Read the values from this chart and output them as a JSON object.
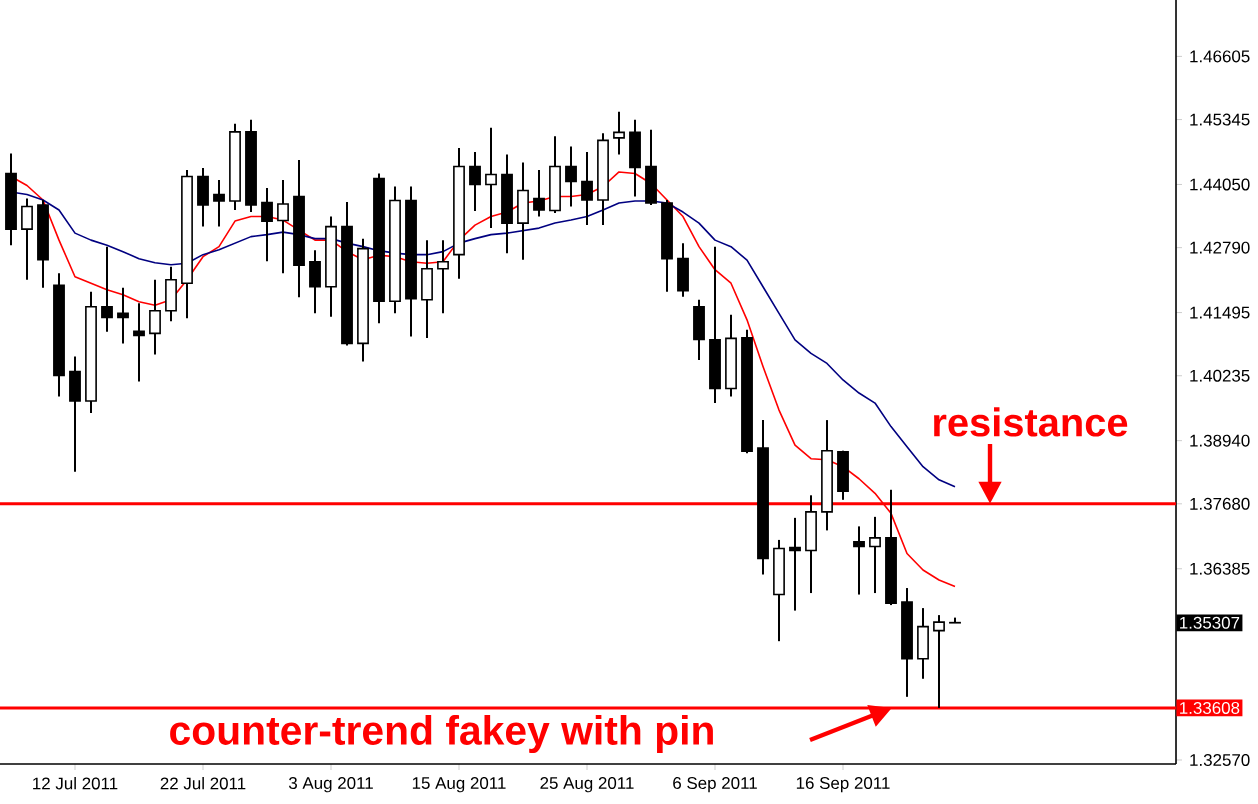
{
  "chart_data": {
    "type": "candlestick",
    "categories": [
      null,
      null,
      null,
      null,
      "12 Jul 2011",
      null,
      null,
      null,
      null,
      null,
      null,
      null,
      "22 Jul 2011",
      null,
      null,
      null,
      null,
      null,
      null,
      null,
      "3 Aug 2011",
      null,
      null,
      null,
      null,
      null,
      null,
      null,
      "15 Aug 2011",
      null,
      null,
      null,
      null,
      null,
      null,
      null,
      "25 Aug 2011",
      null,
      null,
      null,
      null,
      null,
      null,
      null,
      "6 Sep 2011",
      null,
      null,
      null,
      null,
      null,
      null,
      null,
      "16 Sep 2011",
      null,
      null,
      null,
      null,
      null,
      null,
      null
    ],
    "ohlc": [
      [
        1.4427,
        1.4467,
        1.4284,
        1.4316
      ],
      [
        1.4316,
        1.4377,
        1.4215,
        1.4361
      ],
      [
        1.4364,
        1.4374,
        1.4199,
        1.4255
      ],
      [
        1.4204,
        1.4228,
        1.3982,
        1.4024
      ],
      [
        1.4032,
        1.4062,
        1.3832,
        1.3973
      ],
      [
        1.3973,
        1.4191,
        1.3949,
        1.4161
      ],
      [
        1.4161,
        1.4281,
        1.4111,
        1.414
      ],
      [
        1.4148,
        1.4199,
        1.4088,
        1.414
      ],
      [
        1.4112,
        1.4168,
        1.4012,
        1.4104
      ],
      [
        1.4108,
        1.4215,
        1.4066,
        1.4153
      ],
      [
        1.4153,
        1.4241,
        1.4132,
        1.4215
      ],
      [
        1.4208,
        1.4434,
        1.4138,
        1.4421
      ],
      [
        1.4421,
        1.4438,
        1.4321,
        1.4364
      ],
      [
        1.4385,
        1.4414,
        1.4321,
        1.4372
      ],
      [
        1.4372,
        1.4526,
        1.4354,
        1.451
      ],
      [
        1.451,
        1.4534,
        1.435,
        1.4364
      ],
      [
        1.4369,
        1.4398,
        1.4252,
        1.4332
      ],
      [
        1.4333,
        1.4414,
        1.4228,
        1.4366
      ],
      [
        1.4381,
        1.4454,
        1.418,
        1.4244
      ],
      [
        1.4251,
        1.4274,
        1.4148,
        1.4201
      ],
      [
        1.4201,
        1.4341,
        1.4141,
        1.4321
      ],
      [
        1.4321,
        1.437,
        1.4084,
        1.4088
      ],
      [
        1.4088,
        1.4297,
        1.4052,
        1.4277
      ],
      [
        1.4417,
        1.4427,
        1.4128,
        1.4172
      ],
      [
        1.4172,
        1.4401,
        1.4148,
        1.4373
      ],
      [
        1.4373,
        1.4401,
        1.4102,
        1.4177
      ],
      [
        1.4175,
        1.4294,
        1.4099,
        1.4237
      ],
      [
        1.4237,
        1.4294,
        1.4148,
        1.4251
      ],
      [
        1.4265,
        1.4478,
        1.4217,
        1.4441
      ],
      [
        1.4441,
        1.447,
        1.4352,
        1.4405
      ],
      [
        1.4405,
        1.4518,
        1.4318,
        1.4425
      ],
      [
        1.4425,
        1.4465,
        1.4268,
        1.4328
      ],
      [
        1.4328,
        1.4449,
        1.4255,
        1.4393
      ],
      [
        1.4377,
        1.4434,
        1.4341,
        1.4354
      ],
      [
        1.4353,
        1.4501,
        1.4348,
        1.4441
      ],
      [
        1.4441,
        1.4481,
        1.4361,
        1.4411
      ],
      [
        1.4411,
        1.447,
        1.4324,
        1.4374
      ],
      [
        1.4374,
        1.4507,
        1.4324,
        1.4493
      ],
      [
        1.4498,
        1.455,
        1.4465,
        1.4509
      ],
      [
        1.4509,
        1.4534,
        1.4381,
        1.4439
      ],
      [
        1.4441,
        1.4514,
        1.4364,
        1.4368
      ],
      [
        1.4368,
        1.4374,
        1.4191,
        1.4257
      ],
      [
        1.4257,
        1.4288,
        1.4181,
        1.4193
      ],
      [
        1.4161,
        1.4175,
        1.4055,
        1.4096
      ],
      [
        1.4095,
        1.4281,
        1.3969,
        1.3998
      ],
      [
        1.3998,
        1.4145,
        1.3982,
        1.4098
      ],
      [
        1.4099,
        1.4115,
        1.3869,
        1.3873
      ],
      [
        1.3879,
        1.3935,
        1.3627,
        1.3659
      ],
      [
        1.3587,
        1.3696,
        1.3494,
        1.3679
      ],
      [
        1.3681,
        1.374,
        1.3555,
        1.3675
      ],
      [
        1.3675,
        1.3785,
        1.359,
        1.3752
      ],
      [
        1.3752,
        1.3935,
        1.3715,
        1.3874
      ],
      [
        1.3872,
        1.3874,
        1.3776,
        1.3793
      ],
      [
        1.3692,
        1.3723,
        1.3587,
        1.3683
      ],
      [
        1.3683,
        1.3742,
        1.359,
        1.37
      ],
      [
        1.37,
        1.3796,
        1.3566,
        1.357
      ],
      [
        1.3572,
        1.36,
        1.3383,
        1.3459
      ],
      [
        1.3459,
        1.356,
        1.3419,
        1.3523
      ],
      [
        1.3515,
        1.3546,
        1.33608,
        1.3532
      ],
      [
        1.3531,
        1.3541,
        1.35307,
        1.35307
      ]
    ],
    "series": [
      {
        "type": "line",
        "color": "#ff0000",
        "values": [
          1.4421,
          1.4403,
          1.4374,
          1.4294,
          1.4221,
          1.4208,
          1.4195,
          1.4185,
          1.4171,
          1.4164,
          1.4175,
          1.4215,
          1.4261,
          1.4281,
          1.4332,
          1.4341,
          1.4341,
          1.4334,
          1.4314,
          1.4294,
          1.4294,
          1.4271,
          1.4255,
          1.4264,
          1.4261,
          1.4251,
          1.4248,
          1.4251,
          1.4294,
          1.4324,
          1.4341,
          1.435,
          1.4368,
          1.4372,
          1.4381,
          1.4381,
          1.4385,
          1.4401,
          1.443,
          1.4427,
          1.4407,
          1.4374,
          1.4341,
          1.4281,
          1.4235,
          1.4208,
          1.4135,
          1.4042,
          1.3955,
          1.3885,
          1.3858,
          1.3856,
          1.3842,
          1.3818,
          1.3789,
          1.3749,
          1.3669,
          1.3636,
          1.3616,
          1.3603
        ]
      },
      {
        "type": "line",
        "color": "#000080",
        "values": [
          1.439,
          1.4385,
          1.4374,
          1.4354,
          1.4308,
          1.4294,
          1.4284,
          1.4271,
          1.4257,
          1.4249,
          1.4245,
          1.4248,
          1.4265,
          1.4275,
          1.4288,
          1.4301,
          1.4305,
          1.431,
          1.4305,
          1.4297,
          1.4297,
          1.4288,
          1.4281,
          1.4273,
          1.4268,
          1.4265,
          1.4265,
          1.4271,
          1.4288,
          1.4297,
          1.4305,
          1.4308,
          1.4313,
          1.4318,
          1.4328,
          1.4334,
          1.4341,
          1.4354,
          1.4368,
          1.4372,
          1.4372,
          1.4368,
          1.435,
          1.4328,
          1.4294,
          1.4281,
          1.4254,
          1.4201,
          1.4148,
          1.4095,
          1.4068,
          1.4048,
          1.4015,
          1.3989,
          1.3969,
          1.3922,
          1.3882,
          1.3842,
          1.3816,
          1.3802
        ]
      }
    ],
    "ylim": [
      1.3249,
      1.4773
    ],
    "yticks": [
      1.46605,
      1.45345,
      {
        "value": 1.4405,
        "label": "1.44050"
      },
      {
        "value": 1.4279,
        "label": "1.42790"
      },
      1.41495,
      1.40235,
      {
        "value": 1.3894,
        "label": "1.38940"
      },
      {
        "value": 1.3768,
        "label": "1.37680"
      },
      1.36385,
      {
        "value": 1.3257,
        "label": "1.32570"
      }
    ],
    "ref_lines": [
      {
        "axis": "y",
        "value": 1.3768,
        "color": "#ff0000"
      },
      {
        "axis": "y",
        "value": 1.33608,
        "label": "1.33608",
        "color": "#ff0000"
      }
    ],
    "annotations": [
      {
        "text": "resistance",
        "y": 1.3768
      },
      {
        "text": "counter-trend fakey with pin",
        "y": 1.33608
      },
      "1.35307"
    ]
  }
}
